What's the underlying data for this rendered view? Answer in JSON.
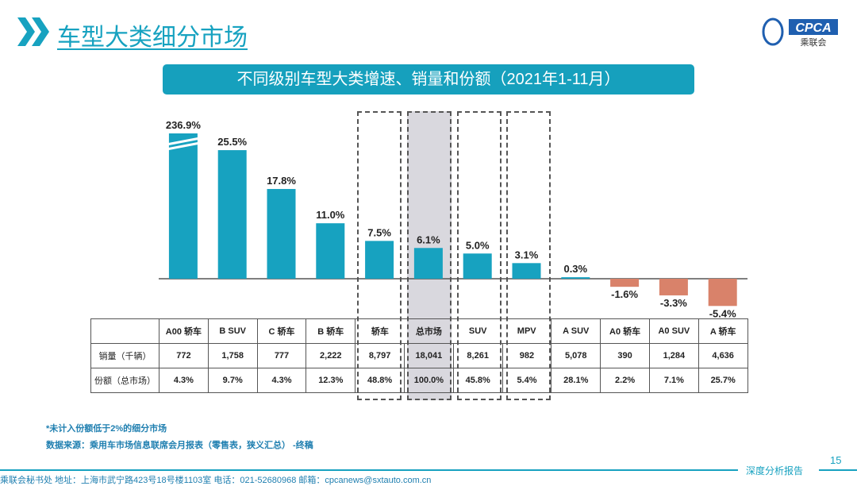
{
  "header": {
    "title": "车型大类细分市场",
    "logo_text": "CPCA",
    "logo_sub": "乘联会"
  },
  "banner": "不同级别车型大类增速、销量和份额（2021年1-11月）",
  "chart_data": {
    "type": "bar",
    "title": "不同级别车型大类增速、销量和份额（2021年1-11月）",
    "categories": [
      "A00 轿车",
      "B SUV",
      "C 轿车",
      "B 轿车",
      "轿车",
      "总市场",
      "SUV",
      "MPV",
      "A SUV",
      "A0 轿车",
      "A0 SUV",
      "A 轿车"
    ],
    "values": [
      236.9,
      25.5,
      17.8,
      11.0,
      7.5,
      6.1,
      5.0,
      3.1,
      0.3,
      -1.6,
      -3.3,
      -5.4
    ],
    "labels": [
      "236.9%",
      "25.5%",
      "17.8%",
      "11.0%",
      "7.5%",
      "6.1%",
      "5.0%",
      "3.1%",
      "0.3%",
      "-1.6%",
      "-3.3%",
      "-5.4%"
    ],
    "broken_axis_categories": [
      "A00 轿车"
    ],
    "highlighted": [
      "轿车",
      "总市场",
      "SUV",
      "MPV"
    ],
    "colors": {
      "positive": "#17a2c0",
      "negative": "#d9826a",
      "highlight_fill": "#d9d8de"
    },
    "table": {
      "rows": [
        {
          "label": "销量（千辆）",
          "values": [
            "772",
            "1,758",
            "777",
            "2,222",
            "8,797",
            "18,041",
            "8,261",
            "982",
            "5,078",
            "390",
            "1,284",
            "4,636"
          ]
        },
        {
          "label": "份额（总市场）",
          "values": [
            "4.3%",
            "9.7%",
            "4.3%",
            "12.3%",
            "48.8%",
            "100.0%",
            "45.8%",
            "5.4%",
            "28.1%",
            "2.2%",
            "7.1%",
            "25.7%"
          ]
        }
      ]
    }
  },
  "notes": [
    "*未计入份额低于2%的细分市场",
    "数据来源：乘用车市场信息联席会月报表（零售表，狭义汇总） -终稿"
  ],
  "page_number": "15",
  "footer_tag": "深度分析报告",
  "footer": "乘联会秘书处   地址：上海市武宁路423号18号楼1103室  电话：021-52680968   邮箱：cpcanews@sxtauto.com.cn"
}
